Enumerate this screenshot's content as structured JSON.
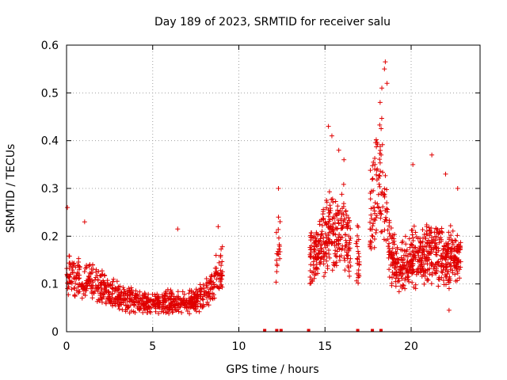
{
  "chart_data": {
    "type": "scatter",
    "title": "Day 189 of 2023, SRMTID for receiver salu",
    "xlabel": "GPS time / hours",
    "ylabel": "SRMTID / TECUs",
    "xlim": [
      0,
      24
    ],
    "ylim": [
      0,
      0.6
    ],
    "x_ticks": [
      0,
      5,
      10,
      15,
      20
    ],
    "x_tick_labels": [
      "0",
      "5",
      "10",
      "15",
      "20"
    ],
    "y_ticks": [
      0,
      0.1,
      0.2,
      0.3,
      0.4,
      0.5,
      0.6
    ],
    "y_tick_labels": [
      "0",
      "0.1",
      "0.2",
      "0.3",
      "0.4",
      "0.5",
      "0.6"
    ],
    "grid": true,
    "marker": "plus",
    "color": "#e00000",
    "series": [
      {
        "name": "SRMTID",
        "trend": [
          {
            "x": 0.0,
            "y": 0.11
          },
          {
            "x": 0.5,
            "y": 0.12
          },
          {
            "x": 1.0,
            "y": 0.1
          },
          {
            "x": 1.5,
            "y": 0.11
          },
          {
            "x": 2.0,
            "y": 0.09
          },
          {
            "x": 3.0,
            "y": 0.075
          },
          {
            "x": 4.0,
            "y": 0.065
          },
          {
            "x": 5.0,
            "y": 0.06
          },
          {
            "x": 6.0,
            "y": 0.065
          },
          {
            "x": 7.0,
            "y": 0.06
          },
          {
            "x": 7.8,
            "y": 0.07
          },
          {
            "x": 8.5,
            "y": 0.1
          },
          {
            "x": 9.0,
            "y": 0.13
          },
          {
            "x": 12.2,
            "y": 0.16
          },
          {
            "x": 14.2,
            "y": 0.16
          },
          {
            "x": 14.8,
            "y": 0.18
          },
          {
            "x": 15.2,
            "y": 0.21
          },
          {
            "x": 15.7,
            "y": 0.2
          },
          {
            "x": 16.0,
            "y": 0.23
          },
          {
            "x": 16.4,
            "y": 0.19
          },
          {
            "x": 17.0,
            "y": 0.15
          },
          {
            "x": 17.6,
            "y": 0.24
          },
          {
            "x": 18.0,
            "y": 0.3
          },
          {
            "x": 18.3,
            "y": 0.33
          },
          {
            "x": 18.7,
            "y": 0.18
          },
          {
            "x": 19.2,
            "y": 0.13
          },
          {
            "x": 20.0,
            "y": 0.15
          },
          {
            "x": 21.0,
            "y": 0.17
          },
          {
            "x": 22.0,
            "y": 0.15
          },
          {
            "x": 22.8,
            "y": 0.16
          }
        ],
        "highlights": [
          {
            "x": 0.05,
            "y": 0.26
          },
          {
            "x": 1.05,
            "y": 0.23
          },
          {
            "x": 6.45,
            "y": 0.215
          },
          {
            "x": 8.8,
            "y": 0.22
          },
          {
            "x": 12.3,
            "y": 0.3
          },
          {
            "x": 12.3,
            "y": 0.24
          },
          {
            "x": 15.2,
            "y": 0.43
          },
          {
            "x": 15.4,
            "y": 0.41
          },
          {
            "x": 15.8,
            "y": 0.38
          },
          {
            "x": 16.1,
            "y": 0.36
          },
          {
            "x": 17.9,
            "y": 0.35
          },
          {
            "x": 18.2,
            "y": 0.48
          },
          {
            "x": 18.3,
            "y": 0.51
          },
          {
            "x": 18.45,
            "y": 0.55
          },
          {
            "x": 18.5,
            "y": 0.565
          },
          {
            "x": 18.6,
            "y": 0.52
          },
          {
            "x": 20.1,
            "y": 0.35
          },
          {
            "x": 21.2,
            "y": 0.37
          },
          {
            "x": 22.0,
            "y": 0.33
          },
          {
            "x": 22.7,
            "y": 0.3
          },
          {
            "x": 22.2,
            "y": 0.045
          }
        ]
      }
    ],
    "zero_markers_x": [
      11.5,
      12.2,
      12.45,
      14.05,
      16.9,
      17.75,
      18.25
    ]
  }
}
